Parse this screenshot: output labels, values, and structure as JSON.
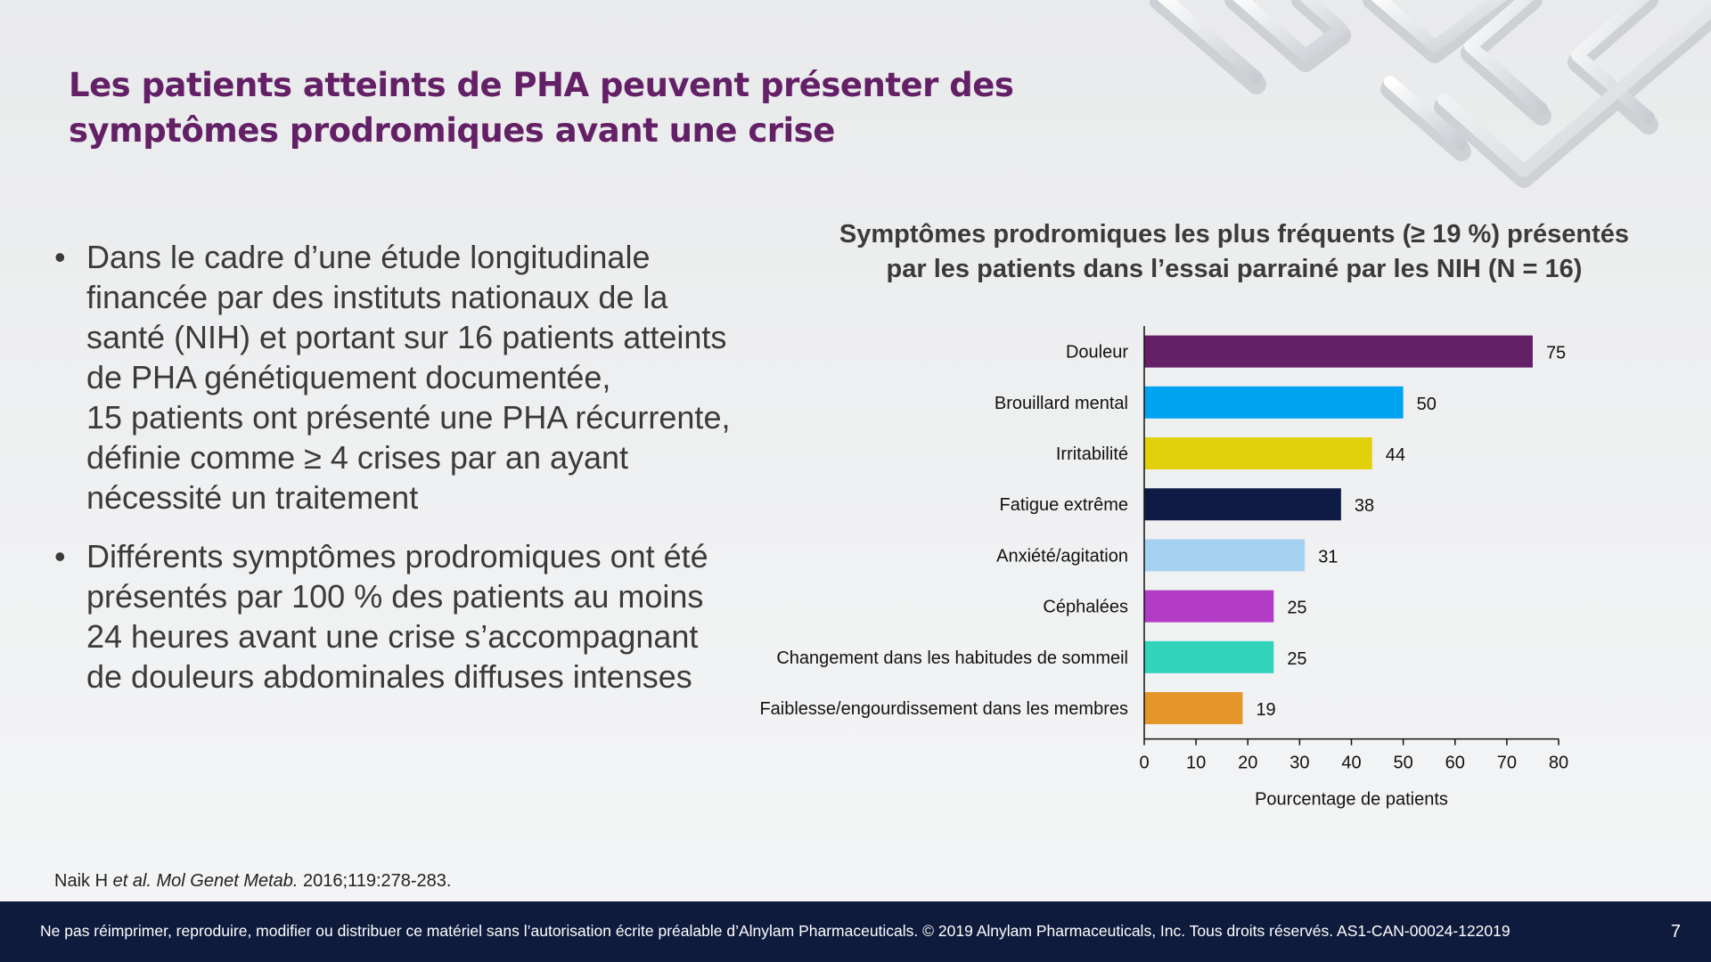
{
  "slide": {
    "title_line1": "Les patients atteints de PHA peuvent présenter des",
    "title_line2": "symptômes prodromiques avant une crise",
    "bullets": [
      {
        "lines": [
          "Dans le cadre d’une étude longitudinale",
          "financée par des instituts nationaux de la",
          "santé (NIH) et portant sur 16 patients atteints",
          "de PHA génétiquement documentée,",
          "15 patients ont présenté une PHA récurrente,",
          "définie comme ≥ 4 crises par an ayant",
          "nécessité un traitement"
        ]
      },
      {
        "lines": [
          "Différents symptômes prodromiques ont été",
          "présentés par 100 % des patients au moins",
          "24 heures avant une crise s’accompagnant",
          "de douleurs abdominales diffuses intenses"
        ]
      }
    ],
    "reference": {
      "author": "Naik H ",
      "etal": "et al.",
      "journal": " Mol Genet Metab.",
      "rest": " 2016;119:278-283."
    },
    "footer_text": "Ne pas réimprimer, reproduire, modifier ou distribuer ce matériel sans l’autorisation écrite préalable d’Alnylam Pharmaceuticals. © 2019 Alnylam Pharmaceuticals, Inc. Tous droits réservés. AS1-CAN-00024-122019",
    "page_number": "7"
  },
  "chart_data": {
    "type": "bar",
    "orientation": "horizontal",
    "title_line1": "Symptômes prodromiques les plus fréquents (≥ 19 %) présentés",
    "title_line2": "par les patients dans l’essai parrainé par les NIH (N = 16)",
    "categories": [
      "Douleur",
      "Brouillard mental",
      "Irritabilité",
      "Fatigue extrême",
      "Anxiété/agitation",
      "Céphalées",
      "Changement dans les habitudes de sommeil",
      "Faiblesse/engourdissement dans les membres"
    ],
    "values": [
      75,
      50,
      44,
      38,
      31,
      25,
      25,
      19
    ],
    "colors": [
      "#641f66",
      "#00a3f0",
      "#e2d00c",
      "#0e1b44",
      "#a6d2f2",
      "#b23cc6",
      "#31d3bb",
      "#e59629"
    ],
    "xlabel": "Pourcentage de patients",
    "xlim": [
      0,
      80
    ],
    "xticks": [
      0,
      10,
      20,
      30,
      40,
      50,
      60,
      70,
      80
    ],
    "data_labels": true,
    "grid": false,
    "legend": "none"
  }
}
